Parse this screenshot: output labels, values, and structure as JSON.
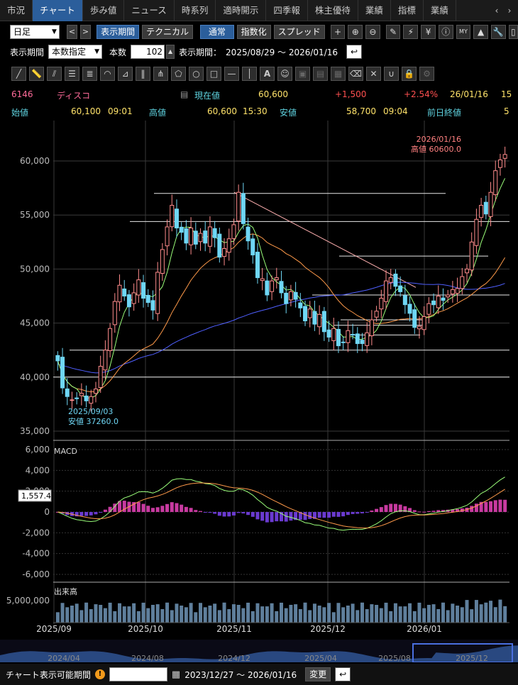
{
  "tabs": [
    "市況",
    "チャート",
    "歩み値",
    "ニュース",
    "時系列",
    "適時開示",
    "四季報",
    "株主優待",
    "業績",
    "指標",
    "業績"
  ],
  "active_tab": "チャート",
  "toolbar": {
    "period_select": "日足",
    "prev": "<",
    "next": ">",
    "display_period_btn": "表示期間",
    "technical_btn": "テクニカル",
    "normal_btn": "通常",
    "index_btn": "指数化",
    "spread_btn": "スプレッド"
  },
  "period_row": {
    "label": "表示期間",
    "mode": "本数指定",
    "count_label": "本数",
    "count": "102",
    "range_label": "表示期間：",
    "range": "2025/08/29 ～ 2026/01/16"
  },
  "quote": {
    "code": "6146",
    "name": "ディスコ",
    "current_label": "現在値",
    "current": "60,600",
    "change": "+1,500",
    "change_pct": "+2.54%",
    "date": "26/01/16",
    "time_cut": "15",
    "open_label": "始値",
    "open": "60,100",
    "open_time": "09:01",
    "high_label": "高値",
    "high": "60,600",
    "high_time": "15:30",
    "low_label": "安値",
    "low": "58,700",
    "low_time": "09:04",
    "prev_close_label": "前日終値",
    "prev_close_cut": "5"
  },
  "chart_data": {
    "type": "candlestick",
    "y_ticks": [
      "60,000",
      "55,000",
      "50,000",
      "45,000",
      "40,000",
      "35,000"
    ],
    "x_ticks": [
      "2025/09",
      "2025/10",
      "2025/11",
      "2025/12",
      "2026/01"
    ],
    "high_annotation": [
      "2026/01/16",
      "高値 60600.0"
    ],
    "low_annotation": [
      "2025/09/03",
      "安値 37260.0"
    ],
    "macd_label": "MACD",
    "macd_ticks": [
      "6,000",
      "4,000",
      "2,000",
      "0",
      "-2,000",
      "-4,000",
      "-6,000"
    ],
    "macd_value": "1,557.4",
    "volume_label": "出来高",
    "volume_tick": "5,000,000",
    "overview_ticks": [
      "2024/04",
      "2024/08",
      "2024/12",
      "2025/04",
      "2025/08",
      "2025/12"
    ],
    "closes": [
      41500,
      39000,
      38200,
      37900,
      38000,
      38500,
      37800,
      38200,
      38900,
      41000,
      42500,
      44500,
      47000,
      48500,
      47500,
      46500,
      47800,
      49000,
      47300,
      46900,
      46200,
      49700,
      51800,
      53900,
      55900,
      53800,
      53400,
      52400,
      53800,
      52300,
      53300,
      52400,
      53900,
      52900,
      51100,
      51900,
      52800,
      54100,
      57100,
      54200,
      52600,
      51300,
      49200,
      49100,
      47600,
      48900,
      49200,
      47800,
      46800,
      47900,
      47200,
      46400,
      45200,
      46300,
      44900,
      45800,
      44200,
      43700,
      44500,
      42900,
      43200,
      44300,
      43900,
      43100,
      43100,
      44100,
      45300,
      46100,
      47300,
      48900,
      49200,
      48400,
      47900,
      46700,
      45900,
      44600,
      44700,
      45600,
      46800,
      46700,
      47500,
      47100,
      47600,
      48100,
      48200,
      49300,
      50000,
      52500,
      54600,
      55900,
      55100,
      57100,
      59100,
      60100,
      60600
    ]
  },
  "bottom": {
    "label": "チャート表示可能期間",
    "warn": "!",
    "range": "2023/12/27 ～ 2026/01/16",
    "change_btn": "変更"
  },
  "colors": {
    "up": "#ff8c8c",
    "down": "#6fd7f5",
    "ma_short": "#9bff7a",
    "ma_mid": "#ff9a4a",
    "ma_long": "#4f5fff",
    "macd_pos": "#c83aa0",
    "macd_neg": "#6a3ad0",
    "volume": "#5f7f9c"
  }
}
